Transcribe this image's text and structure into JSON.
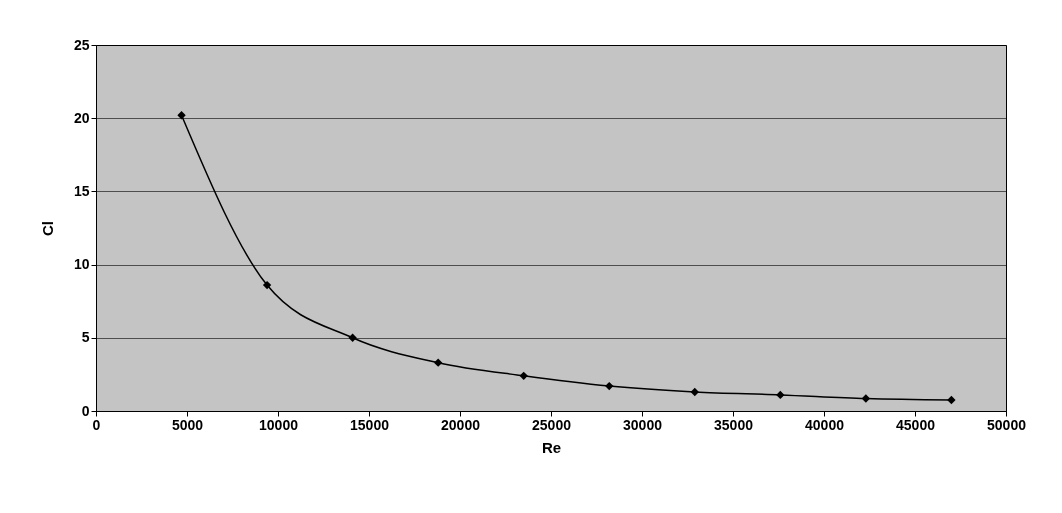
{
  "chart_data": {
    "type": "line",
    "xlabel": "Re",
    "ylabel": "Cl",
    "x": [
      4700,
      9400,
      14100,
      18800,
      23500,
      28200,
      32900,
      37600,
      42300,
      47000
    ],
    "series": [
      {
        "color": "#000000",
        "values": [
          20.2,
          8.6,
          5.0,
          3.3,
          2.4,
          1.7,
          1.3,
          1.1,
          0.85,
          0.75
        ]
      }
    ],
    "xlim": [
      0,
      50000
    ],
    "xticks": [
      0,
      5000,
      10000,
      15000,
      20000,
      25000,
      30000,
      35000,
      40000,
      45000,
      50000
    ],
    "ylim": [
      0,
      25
    ],
    "yticks": [
      0,
      5,
      10,
      15,
      20,
      25
    ],
    "grid": "y",
    "marker": "diamond",
    "line_style": "solid"
  }
}
